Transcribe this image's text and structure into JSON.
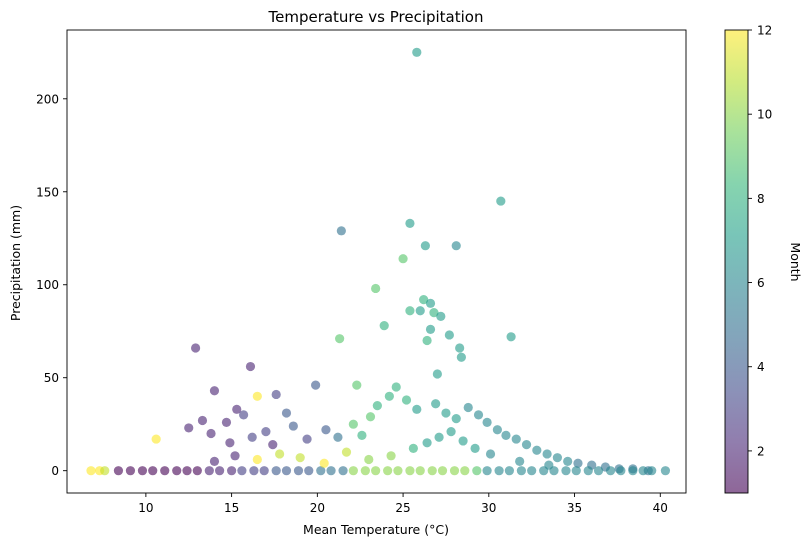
{
  "chart_data": {
    "type": "scatter",
    "title": "Temperature vs Precipitation",
    "xlabel": "Mean Temperature (°C)",
    "ylabel": "Precipitation (mm)",
    "xlim": [
      5.4,
      41.5
    ],
    "ylim": [
      -12,
      237
    ],
    "xticks": [
      10,
      15,
      20,
      25,
      30,
      35,
      40
    ],
    "yticks": [
      0,
      50,
      100,
      150,
      200
    ],
    "grid": false,
    "legend": "none",
    "colorbar": {
      "label": "Month",
      "min": 1,
      "max": 12,
      "ticks": [
        2,
        4,
        6,
        8,
        10,
        12
      ],
      "colormap": "viridis",
      "stops": [
        "#440154",
        "#482878",
        "#3e4989",
        "#31688e",
        "#26828e",
        "#1f9e89",
        "#35b779",
        "#6ece58",
        "#b5de2b",
        "#fde725"
      ]
    },
    "point_alpha": 0.6,
    "points": [
      [
        25.8,
        225,
        7
      ],
      [
        30.7,
        145,
        7
      ],
      [
        21.4,
        129,
        5
      ],
      [
        25.4,
        133,
        7
      ],
      [
        26.3,
        121,
        7
      ],
      [
        28.1,
        121,
        6
      ],
      [
        25.0,
        114,
        9
      ],
      [
        23.4,
        98,
        9
      ],
      [
        31.3,
        72,
        7
      ],
      [
        21.3,
        71,
        9
      ],
      [
        12.9,
        66,
        2
      ],
      [
        16.1,
        56,
        2
      ],
      [
        19.9,
        46,
        4
      ],
      [
        14.0,
        43,
        2
      ],
      [
        17.6,
        41,
        3
      ],
      [
        16.5,
        40,
        12
      ],
      [
        22.3,
        46,
        9
      ],
      [
        23.9,
        78,
        8
      ],
      [
        25.4,
        86,
        8
      ],
      [
        26.0,
        86,
        7
      ],
      [
        26.2,
        92,
        8
      ],
      [
        26.6,
        90,
        7
      ],
      [
        26.8,
        85,
        8
      ],
      [
        27.2,
        83,
        7
      ],
      [
        26.6,
        76,
        7
      ],
      [
        27.7,
        73,
        7
      ],
      [
        26.4,
        70,
        8
      ],
      [
        28.3,
        66,
        7
      ],
      [
        28.4,
        61,
        7
      ],
      [
        27.0,
        52,
        7
      ],
      [
        10.6,
        17,
        12
      ],
      [
        13.3,
        27,
        2
      ],
      [
        14.7,
        26,
        2
      ],
      [
        15.3,
        33,
        2
      ],
      [
        15.7,
        30,
        3
      ],
      [
        18.2,
        31,
        4
      ],
      [
        12.5,
        23,
        2
      ],
      [
        13.8,
        20,
        2
      ],
      [
        14.9,
        15,
        2
      ],
      [
        16.2,
        18,
        3
      ],
      [
        17.0,
        21,
        3
      ],
      [
        17.4,
        14,
        2
      ],
      [
        18.6,
        24,
        4
      ],
      [
        19.4,
        17,
        3
      ],
      [
        20.5,
        22,
        4
      ],
      [
        21.2,
        18,
        5
      ],
      [
        22.1,
        25,
        9
      ],
      [
        22.6,
        19,
        8
      ],
      [
        23.1,
        29,
        9
      ],
      [
        23.5,
        35,
        8
      ],
      [
        24.2,
        40,
        8
      ],
      [
        24.6,
        45,
        8
      ],
      [
        25.2,
        38,
        8
      ],
      [
        25.8,
        33,
        7
      ],
      [
        26.9,
        36,
        7
      ],
      [
        27.5,
        31,
        7
      ],
      [
        28.1,
        28,
        7
      ],
      [
        28.8,
        34,
        6
      ],
      [
        29.4,
        30,
        6
      ],
      [
        29.9,
        26,
        6
      ],
      [
        30.5,
        22,
        6
      ],
      [
        31.0,
        19,
        6
      ],
      [
        31.6,
        17,
        6
      ],
      [
        32.2,
        14,
        6
      ],
      [
        32.8,
        11,
        6
      ],
      [
        33.4,
        9,
        6
      ],
      [
        34.0,
        7,
        6
      ],
      [
        34.6,
        5,
        6
      ],
      [
        35.2,
        4,
        5
      ],
      [
        36.0,
        3,
        5
      ],
      [
        36.8,
        2,
        5
      ],
      [
        37.6,
        1,
        5
      ],
      [
        38.4,
        1,
        5
      ],
      [
        39.3,
        0,
        5
      ],
      [
        40.3,
        0,
        6
      ],
      [
        6.8,
        0,
        12
      ],
      [
        7.3,
        0,
        12
      ],
      [
        7.6,
        0,
        11
      ],
      [
        8.4,
        0,
        1
      ],
      [
        9.1,
        0,
        1
      ],
      [
        9.8,
        0,
        1
      ],
      [
        10.4,
        0,
        1
      ],
      [
        11.1,
        0,
        1
      ],
      [
        11.8,
        0,
        1
      ],
      [
        12.4,
        0,
        1
      ],
      [
        13.0,
        0,
        1
      ],
      [
        13.7,
        0,
        2
      ],
      [
        14.3,
        0,
        2
      ],
      [
        15.0,
        0,
        2
      ],
      [
        15.6,
        0,
        3
      ],
      [
        16.3,
        0,
        3
      ],
      [
        16.9,
        0,
        3
      ],
      [
        17.6,
        0,
        4
      ],
      [
        18.2,
        0,
        4
      ],
      [
        18.9,
        0,
        4
      ],
      [
        19.5,
        0,
        4
      ],
      [
        20.2,
        0,
        5
      ],
      [
        20.8,
        0,
        5
      ],
      [
        21.5,
        0,
        5
      ],
      [
        22.1,
        0,
        10
      ],
      [
        22.8,
        0,
        10
      ],
      [
        23.4,
        0,
        10
      ],
      [
        24.1,
        0,
        10
      ],
      [
        24.7,
        0,
        10
      ],
      [
        25.4,
        0,
        10
      ],
      [
        26.0,
        0,
        10
      ],
      [
        26.7,
        0,
        10
      ],
      [
        27.3,
        0,
        10
      ],
      [
        28.0,
        0,
        10
      ],
      [
        28.6,
        0,
        10
      ],
      [
        29.3,
        0,
        9
      ],
      [
        29.9,
        0,
        6
      ],
      [
        30.6,
        0,
        6
      ],
      [
        31.2,
        0,
        6
      ],
      [
        31.9,
        0,
        6
      ],
      [
        32.5,
        0,
        6
      ],
      [
        33.2,
        0,
        6
      ],
      [
        33.8,
        0,
        6
      ],
      [
        34.5,
        0,
        6
      ],
      [
        35.1,
        0,
        6
      ],
      [
        35.8,
        0,
        6
      ],
      [
        36.4,
        0,
        6
      ],
      [
        37.1,
        0,
        6
      ],
      [
        37.7,
        0,
        6
      ],
      [
        38.4,
        0,
        6
      ],
      [
        39.0,
        0,
        6
      ],
      [
        39.5,
        0,
        6
      ],
      [
        14.0,
        5,
        2
      ],
      [
        15.2,
        8,
        2
      ],
      [
        16.5,
        6,
        12
      ],
      [
        17.8,
        9,
        11
      ],
      [
        19.0,
        7,
        11
      ],
      [
        20.4,
        4,
        12
      ],
      [
        21.7,
        10,
        11
      ],
      [
        23.0,
        6,
        10
      ],
      [
        24.3,
        8,
        10
      ],
      [
        25.6,
        12,
        8
      ],
      [
        26.4,
        15,
        7
      ],
      [
        27.1,
        18,
        7
      ],
      [
        27.8,
        21,
        7
      ],
      [
        28.5,
        16,
        7
      ],
      [
        29.2,
        12,
        7
      ],
      [
        30.1,
        9,
        6
      ],
      [
        31.8,
        5,
        6
      ],
      [
        33.5,
        3,
        6
      ]
    ]
  }
}
